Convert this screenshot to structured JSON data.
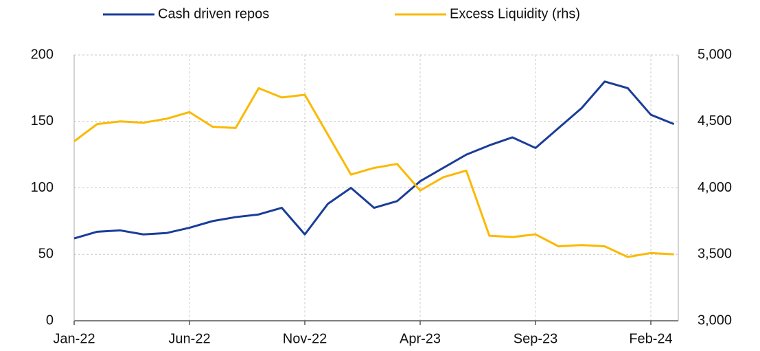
{
  "chart_data": {
    "type": "line",
    "x": [
      "Jan-22",
      "Feb-22",
      "Mar-22",
      "Apr-22",
      "May-22",
      "Jun-22",
      "Jul-22",
      "Aug-22",
      "Sep-22",
      "Oct-22",
      "Nov-22",
      "Dec-22",
      "Jan-23",
      "Feb-23",
      "Mar-23",
      "Apr-23",
      "May-23",
      "Jun-23",
      "Jul-23",
      "Aug-23",
      "Sep-23",
      "Oct-23",
      "Nov-23",
      "Dec-23",
      "Jan-24",
      "Feb-24",
      "Mar-24"
    ],
    "xticks": [
      "Jan-22",
      "Jun-22",
      "Nov-22",
      "Apr-23",
      "Sep-23",
      "Feb-24"
    ],
    "series": [
      {
        "name": "Cash driven repos",
        "color": "#1a3d99",
        "values": [
          62,
          67,
          68,
          65,
          66,
          70,
          75,
          78,
          80,
          85,
          65,
          88,
          100,
          85,
          90,
          105,
          115,
          125,
          132,
          138,
          130,
          145,
          160,
          180,
          175,
          155,
          148
        ]
      },
      {
        "name": "Excess Liquidity (rhs)",
        "color": "#fbb900",
        "axis": "y2",
        "values": [
          4350,
          4480,
          4500,
          4490,
          4520,
          4570,
          4460,
          4450,
          4750,
          4680,
          4700,
          4400,
          4100,
          4150,
          4180,
          3980,
          4080,
          4130,
          3640,
          3630,
          3650,
          3560,
          3570,
          3560,
          3480,
          3510,
          3500
        ]
      }
    ],
    "ylim": [
      0,
      200
    ],
    "yticks": [
      0,
      50,
      100,
      150,
      200
    ],
    "y2lim": [
      3000,
      5000
    ],
    "y2ticks": [
      {
        "value": 3000,
        "label": "3,000"
      },
      {
        "value": 3500,
        "label": "3,500"
      },
      {
        "value": 4000,
        "label": "4,000"
      },
      {
        "value": 4500,
        "label": "4,500"
      },
      {
        "value": 5000,
        "label": "5,000"
      }
    ],
    "grid": true,
    "legend": "top"
  }
}
